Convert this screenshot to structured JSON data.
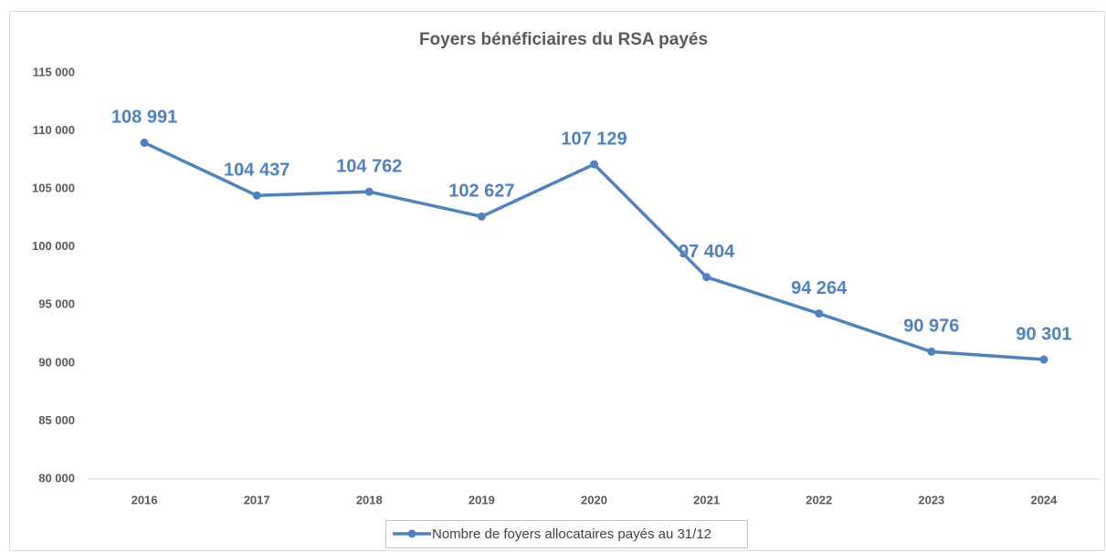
{
  "chart_data": {
    "type": "line",
    "title": "Foyers bénéficiaires du RSA payés",
    "categories": [
      "2016",
      "2017",
      "2018",
      "2019",
      "2020",
      "2021",
      "2022",
      "2023",
      "2024"
    ],
    "series": [
      {
        "name": "Nombre de foyers allocataires payés au 31/12",
        "color": "#4f81bd",
        "values": [
          108991,
          104437,
          104762,
          102627,
          107129,
          97404,
          94264,
          90976,
          90301
        ],
        "value_labels": [
          "108 991",
          "104 437",
          "104 762",
          "102 627",
          "107 129",
          "97 404",
          "94 264",
          "90 976",
          "90 301"
        ]
      }
    ],
    "ylim": [
      80000,
      115000
    ],
    "yticks": [
      {
        "value": 80000,
        "label": "80 000"
      },
      {
        "value": 85000,
        "label": "85 000"
      },
      {
        "value": 90000,
        "label": "90 000"
      },
      {
        "value": 95000,
        "label": "95 000"
      },
      {
        "value": 100000,
        "label": "100 000"
      },
      {
        "value": 105000,
        "label": "105 000"
      },
      {
        "value": 110000,
        "label": "110 000"
      },
      {
        "value": 115000,
        "label": "115 000"
      }
    ],
    "grid": false,
    "legend": "bottom"
  }
}
